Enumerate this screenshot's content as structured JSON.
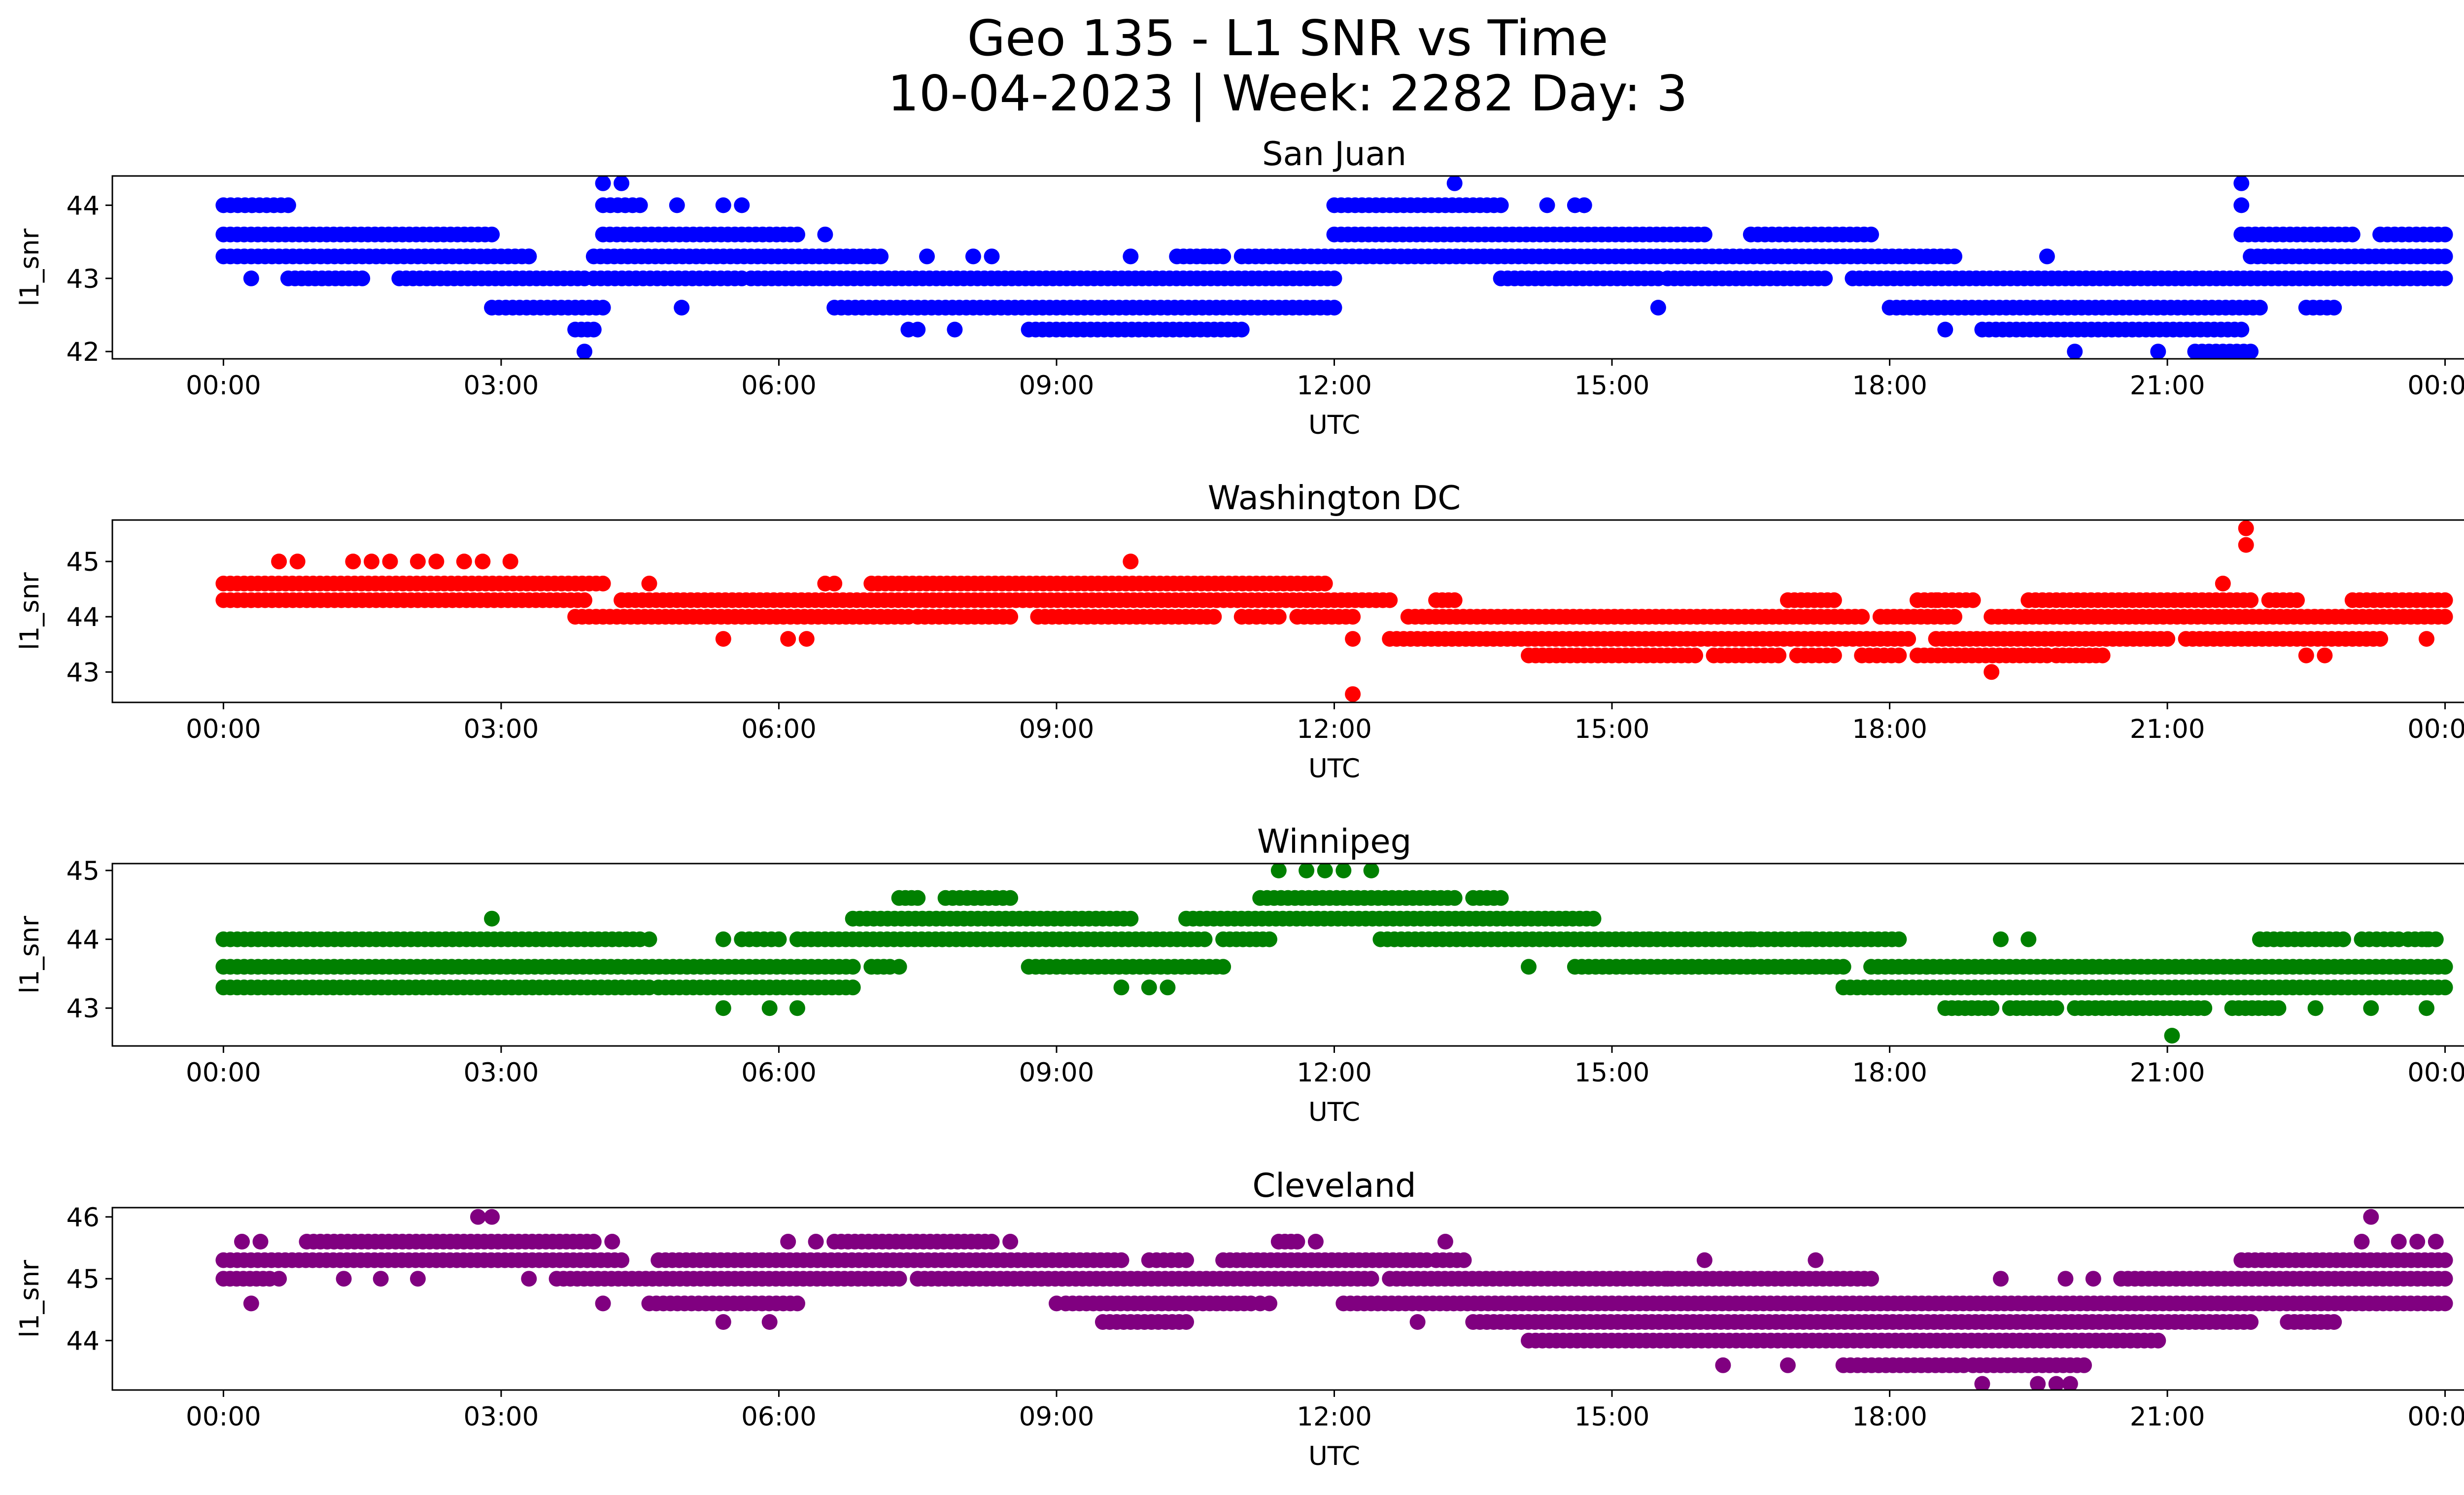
{
  "title": "Geo 135 - L1 SNR vs Time",
  "subtitle": "10-04-2023 | Week: 2282 Day: 3",
  "chart_data": [
    {
      "type": "scatter",
      "title": "San Juan",
      "color": "#0000ff",
      "xlabel": "UTC",
      "ylabel": "l1_snr",
      "x_ticks": [
        "00:00",
        "03:00",
        "06:00",
        "09:00",
        "12:00",
        "15:00",
        "18:00",
        "21:00",
        "00:00"
      ],
      "xlim_hours": [
        -1.2,
        25.2
      ],
      "y_ticks": [
        42,
        43,
        44
      ],
      "ylim": [
        41.9,
        44.4
      ],
      "bands": [
        {
          "y": 44.0,
          "x": [
            [
              0,
              0.7
            ],
            [
              4.1,
              4.5
            ],
            [
              12.0,
              13.8
            ],
            [
              14.6,
              14.7
            ]
          ]
        },
        {
          "y": 43.6,
          "x": [
            [
              0,
              2.9
            ],
            [
              4.1,
              6.2
            ],
            [
              12.0,
              16.0
            ],
            [
              16.5,
              17.8
            ],
            [
              21.8,
              23.0
            ],
            [
              23.3,
              24.0
            ]
          ]
        },
        {
          "y": 43.3,
          "x": [
            [
              0,
              3.3
            ],
            [
              4.0,
              7.1
            ],
            [
              10.3,
              10.8
            ],
            [
              11.0,
              18.7
            ],
            [
              21.9,
              24.0
            ]
          ]
        },
        {
          "y": 43.0,
          "x": [
            [
              0.7,
              1.5
            ],
            [
              1.9,
              3.9
            ],
            [
              4.0,
              5.6
            ],
            [
              5.7,
              12.0
            ],
            [
              13.8,
              15.5
            ],
            [
              15.6,
              17.3
            ],
            [
              17.6,
              21.9
            ],
            [
              21.9,
              24.0
            ]
          ]
        },
        {
          "y": 42.6,
          "x": [
            [
              2.9,
              4.1
            ],
            [
              6.6,
              12.0
            ],
            [
              18.0,
              22.0
            ],
            [
              22.5,
              22.8
            ]
          ]
        },
        {
          "y": 42.3,
          "x": [
            [
              3.8,
              4.0
            ],
            [
              7.4,
              7.5
            ],
            [
              8.7,
              11.0
            ],
            [
              19.0,
              21.8
            ]
          ]
        },
        {
          "y": 42.0,
          "x": [
            [
              21.3,
              21.9
            ]
          ]
        }
      ],
      "points": [
        {
          "x": 0.3,
          "y": 43.0
        },
        {
          "x": 3.3,
          "y": 43.3
        },
        {
          "x": 3.9,
          "y": 42.0
        },
        {
          "x": 4.1,
          "y": 44.3
        },
        {
          "x": 4.3,
          "y": 44.3
        },
        {
          "x": 4.9,
          "y": 44.0
        },
        {
          "x": 4.95,
          "y": 42.6
        },
        {
          "x": 5.4,
          "y": 44.0
        },
        {
          "x": 5.6,
          "y": 44.0
        },
        {
          "x": 6.5,
          "y": 43.6
        },
        {
          "x": 7.6,
          "y": 43.3
        },
        {
          "x": 8.1,
          "y": 43.3
        },
        {
          "x": 8.3,
          "y": 43.3
        },
        {
          "x": 9.8,
          "y": 43.3
        },
        {
          "x": 10.6,
          "y": 43.3
        },
        {
          "x": 13.3,
          "y": 44.3
        },
        {
          "x": 14.3,
          "y": 44.0
        },
        {
          "x": 14.7,
          "y": 44.0
        },
        {
          "x": 14.4,
          "y": 43.0
        },
        {
          "x": 15.5,
          "y": 42.6
        },
        {
          "x": 19.7,
          "y": 43.3
        },
        {
          "x": 20.0,
          "y": 42.0
        },
        {
          "x": 20.9,
          "y": 42.0
        },
        {
          "x": 21.8,
          "y": 44.3
        },
        {
          "x": 21.8,
          "y": 44.0
        },
        {
          "x": 18.6,
          "y": 42.3
        },
        {
          "x": 7.9,
          "y": 42.3
        }
      ]
    },
    {
      "type": "scatter",
      "title": "Washington DC",
      "color": "#ff0000",
      "xlabel": "UTC",
      "ylabel": "l1_snr",
      "x_ticks": [
        "00:00",
        "03:00",
        "06:00",
        "09:00",
        "12:00",
        "15:00",
        "18:00",
        "21:00",
        "00:00"
      ],
      "xlim_hours": [
        -1.2,
        25.2
      ],
      "y_ticks": [
        43,
        44,
        45
      ],
      "ylim": [
        42.45,
        45.75
      ],
      "bands": [
        {
          "y": 44.6,
          "x": [
            [
              0,
              4.1
            ],
            [
              6.5,
              6.6
            ],
            [
              7.0,
              11.9
            ]
          ]
        },
        {
          "y": 44.3,
          "x": [
            [
              0,
              3.9
            ],
            [
              4.3,
              12.6
            ],
            [
              13.1,
              13.3
            ],
            [
              16.9,
              17.4
            ],
            [
              18.3,
              18.9
            ],
            [
              19.5,
              21.9
            ],
            [
              22.1,
              22.4
            ],
            [
              23.0,
              24.0
            ]
          ]
        },
        {
          "y": 44.0,
          "x": [
            [
              3.8,
              7.4
            ],
            [
              7.5,
              8.5
            ],
            [
              8.8,
              10.7
            ],
            [
              11.0,
              11.4
            ],
            [
              11.6,
              12.2
            ],
            [
              12.8,
              17.7
            ],
            [
              17.9,
              18.7
            ],
            [
              19.1,
              24.0
            ]
          ]
        },
        {
          "y": 43.6,
          "x": [
            [
              12.6,
              18.2
            ],
            [
              18.5,
              21.0
            ],
            [
              21.2,
              23.3
            ]
          ]
        },
        {
          "y": 43.3,
          "x": [
            [
              14.1,
              15.9
            ],
            [
              16.1,
              16.8
            ],
            [
              17.0,
              17.4
            ],
            [
              17.7,
              18.1
            ],
            [
              18.3,
              19.7
            ],
            [
              19.8,
              20.3
            ]
          ]
        }
      ],
      "points": [
        {
          "x": 0.6,
          "y": 45.0
        },
        {
          "x": 0.8,
          "y": 45.0
        },
        {
          "x": 1.4,
          "y": 45.0
        },
        {
          "x": 1.6,
          "y": 45.0
        },
        {
          "x": 1.8,
          "y": 45.0
        },
        {
          "x": 2.1,
          "y": 45.0
        },
        {
          "x": 2.3,
          "y": 45.0
        },
        {
          "x": 2.6,
          "y": 45.0
        },
        {
          "x": 2.8,
          "y": 45.0
        },
        {
          "x": 3.1,
          "y": 45.0
        },
        {
          "x": 4.6,
          "y": 44.6
        },
        {
          "x": 5.4,
          "y": 43.6
        },
        {
          "x": 6.1,
          "y": 43.6
        },
        {
          "x": 6.3,
          "y": 43.6
        },
        {
          "x": 9.8,
          "y": 45.0
        },
        {
          "x": 12.2,
          "y": 43.6
        },
        {
          "x": 12.2,
          "y": 42.6
        },
        {
          "x": 18.5,
          "y": 44.3
        },
        {
          "x": 19.1,
          "y": 43.0
        },
        {
          "x": 21.6,
          "y": 44.6
        },
        {
          "x": 21.85,
          "y": 45.6
        },
        {
          "x": 21.85,
          "y": 45.3
        },
        {
          "x": 22.5,
          "y": 43.3
        },
        {
          "x": 22.7,
          "y": 43.3
        },
        {
          "x": 23.8,
          "y": 43.6
        }
      ]
    },
    {
      "type": "scatter",
      "title": "Winnipeg",
      "color": "#008000",
      "xlabel": "UTC",
      "ylabel": "l1_snr",
      "x_ticks": [
        "00:00",
        "03:00",
        "06:00",
        "09:00",
        "12:00",
        "15:00",
        "18:00",
        "21:00",
        "00:00"
      ],
      "xlim_hours": [
        -1.2,
        25.2
      ],
      "y_ticks": [
        43,
        44,
        45
      ],
      "ylim": [
        42.45,
        45.1
      ],
      "bands": [
        {
          "y": 44.6,
          "x": [
            [
              7.3,
              7.5
            ],
            [
              7.8,
              8.5
            ],
            [
              11.2,
              13.3
            ],
            [
              13.5,
              13.8
            ]
          ]
        },
        {
          "y": 44.3,
          "x": [
            [
              6.8,
              9.8
            ],
            [
              10.4,
              14.8
            ]
          ]
        },
        {
          "y": 44.0,
          "x": [
            [
              0,
              4.5
            ],
            [
              5.6,
              6.0
            ],
            [
              6.2,
              10.6
            ],
            [
              10.8,
              11.3
            ],
            [
              12.5,
              18.1
            ],
            [
              22.0,
              22.9
            ],
            [
              23.1,
              23.5
            ],
            [
              23.6,
              23.9
            ]
          ]
        },
        {
          "y": 43.6,
          "x": [
            [
              0,
              6.8
            ],
            [
              7.0,
              7.2
            ],
            [
              8.7,
              10.8
            ],
            [
              14.6,
              17.5
            ],
            [
              17.8,
              24.0
            ]
          ]
        },
        {
          "y": 43.3,
          "x": [
            [
              0,
              4.6
            ],
            [
              4.7,
              6.8
            ],
            [
              17.5,
              24.0
            ]
          ]
        },
        {
          "y": 43.0,
          "x": [
            [
              18.6,
              19.1
            ],
            [
              19.3,
              19.8
            ],
            [
              20.0,
              21.4
            ],
            [
              21.7,
              22.2
            ]
          ]
        }
      ],
      "points": [
        {
          "x": 2.9,
          "y": 44.3
        },
        {
          "x": 4.6,
          "y": 44.0
        },
        {
          "x": 5.4,
          "y": 44.0
        },
        {
          "x": 5.4,
          "y": 43.0
        },
        {
          "x": 5.9,
          "y": 43.0
        },
        {
          "x": 6.2,
          "y": 43.0
        },
        {
          "x": 7.3,
          "y": 43.6
        },
        {
          "x": 9.7,
          "y": 43.3
        },
        {
          "x": 10.0,
          "y": 43.3
        },
        {
          "x": 10.2,
          "y": 43.3
        },
        {
          "x": 11.4,
          "y": 45.0
        },
        {
          "x": 11.7,
          "y": 45.0
        },
        {
          "x": 11.9,
          "y": 45.0
        },
        {
          "x": 12.1,
          "y": 45.0
        },
        {
          "x": 12.4,
          "y": 45.0
        },
        {
          "x": 14.1,
          "y": 43.6
        },
        {
          "x": 15.4,
          "y": 44.0
        },
        {
          "x": 16.5,
          "y": 44.0
        },
        {
          "x": 17.1,
          "y": 44.0
        },
        {
          "x": 18.4,
          "y": 43.6
        },
        {
          "x": 19.2,
          "y": 44.0
        },
        {
          "x": 19.5,
          "y": 44.0
        },
        {
          "x": 21.05,
          "y": 42.6
        },
        {
          "x": 22.6,
          "y": 43.0
        },
        {
          "x": 23.2,
          "y": 43.0
        },
        {
          "x": 23.8,
          "y": 43.0
        },
        {
          "x": 23.8,
          "y": 44.0
        }
      ]
    },
    {
      "type": "scatter",
      "title": "Cleveland",
      "color": "#800080",
      "xlabel": "UTC",
      "ylabel": "l1_snr",
      "x_ticks": [
        "00:00",
        "03:00",
        "06:00",
        "09:00",
        "12:00",
        "15:00",
        "18:00",
        "21:00",
        "00:00"
      ],
      "xlim_hours": [
        -1.2,
        25.2
      ],
      "y_ticks": [
        44,
        45,
        46
      ],
      "ylim": [
        43.2,
        46.15
      ],
      "bands": [
        {
          "y": 45.6,
          "x": [
            [
              0.9,
              4.0
            ],
            [
              6.6,
              8.3
            ],
            [
              11.4,
              11.6
            ]
          ]
        },
        {
          "y": 45.3,
          "x": [
            [
              0,
              4.3
            ],
            [
              4.7,
              9.7
            ],
            [
              10.0,
              10.4
            ],
            [
              10.8,
              13.0
            ],
            [
              13.1,
              13.4
            ],
            [
              21.8,
              24.0
            ]
          ]
        },
        {
          "y": 45.0,
          "x": [
            [
              0,
              0.5
            ],
            [
              3.6,
              7.3
            ],
            [
              7.5,
              12.4
            ],
            [
              12.6,
              17.8
            ],
            [
              20.5,
              24.0
            ]
          ]
        },
        {
          "y": 44.6,
          "x": [
            [
              4.6,
              6.2
            ],
            [
              9.1,
              11.1
            ],
            [
              12.1,
              24.0
            ]
          ]
        },
        {
          "y": 44.3,
          "x": [
            [
              9.5,
              10.4
            ],
            [
              13.5,
              21.9
            ],
            [
              22.3,
              22.8
            ]
          ]
        },
        {
          "y": 44.0,
          "x": [
            [
              14.1,
              20.9
            ]
          ]
        },
        {
          "y": 43.6,
          "x": [
            [
              17.5,
              18.8
            ],
            [
              18.9,
              20.1
            ]
          ]
        }
      ],
      "points": [
        {
          "x": 0.2,
          "y": 45.6
        },
        {
          "x": 0.4,
          "y": 45.6
        },
        {
          "x": 0.3,
          "y": 44.6
        },
        {
          "x": 0.6,
          "y": 45.0
        },
        {
          "x": 1.3,
          "y": 45.0
        },
        {
          "x": 1.7,
          "y": 45.0
        },
        {
          "x": 2.1,
          "y": 45.0
        },
        {
          "x": 2.75,
          "y": 46.0
        },
        {
          "x": 2.9,
          "y": 46.0
        },
        {
          "x": 3.3,
          "y": 45.0
        },
        {
          "x": 4.1,
          "y": 44.6
        },
        {
          "x": 4.2,
          "y": 45.6
        },
        {
          "x": 5.4,
          "y": 44.3
        },
        {
          "x": 5.9,
          "y": 44.3
        },
        {
          "x": 6.1,
          "y": 45.6
        },
        {
          "x": 6.4,
          "y": 45.6
        },
        {
          "x": 8.5,
          "y": 45.6
        },
        {
          "x": 9.0,
          "y": 44.6
        },
        {
          "x": 11.8,
          "y": 45.6
        },
        {
          "x": 11.2,
          "y": 44.6
        },
        {
          "x": 11.3,
          "y": 44.6
        },
        {
          "x": 12.9,
          "y": 44.3
        },
        {
          "x": 13.2,
          "y": 45.6
        },
        {
          "x": 15.6,
          "y": 45.0
        },
        {
          "x": 16.0,
          "y": 45.3
        },
        {
          "x": 16.2,
          "y": 43.6
        },
        {
          "x": 17.2,
          "y": 45.3
        },
        {
          "x": 16.9,
          "y": 43.6
        },
        {
          "x": 19.2,
          "y": 45.0
        },
        {
          "x": 19.0,
          "y": 43.3
        },
        {
          "x": 19.6,
          "y": 43.3
        },
        {
          "x": 19.8,
          "y": 43.3
        },
        {
          "x": 19.95,
          "y": 43.3
        },
        {
          "x": 19.9,
          "y": 45.0
        },
        {
          "x": 20.2,
          "y": 45.0
        },
        {
          "x": 23.2,
          "y": 46.0
        },
        {
          "x": 23.1,
          "y": 45.6
        },
        {
          "x": 23.5,
          "y": 45.6
        },
        {
          "x": 23.7,
          "y": 45.6
        },
        {
          "x": 23.9,
          "y": 45.6
        }
      ]
    }
  ]
}
